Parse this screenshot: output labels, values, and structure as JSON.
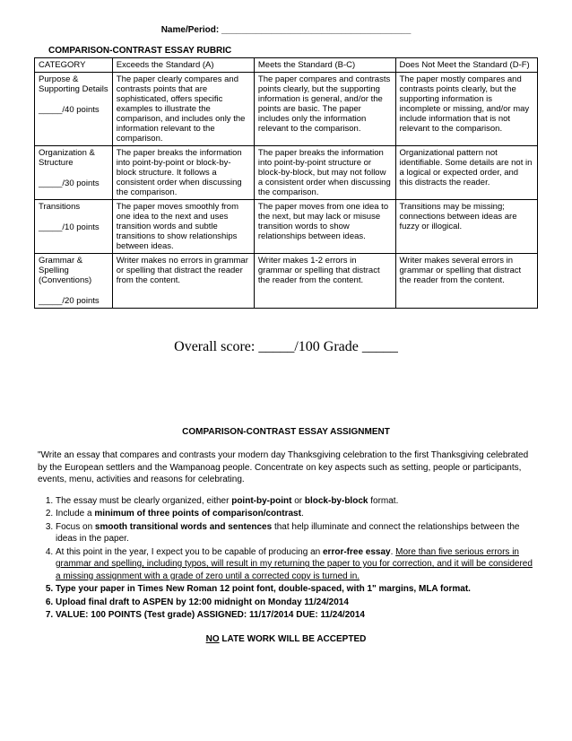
{
  "header": {
    "name_period": "Name/Period: ______________________________________"
  },
  "rubric": {
    "title": "COMPARISON-CONTRAST ESSAY RUBRIC",
    "columns": [
      "CATEGORY",
      "Exceeds the Standard (A)",
      "Meets the Standard (B-C)",
      "Does Not Meet the Standard (D-F)"
    ],
    "rows": [
      {
        "cat_line1": "Purpose & Supporting Details",
        "cat_points": "_____/40 points",
        "exceeds": "The paper clearly compares and contrasts points that are sophisticated, offers specific examples to illustrate the comparison, and includes only the information relevant to the comparison.",
        "meets": "The paper compares and contrasts points clearly, but the supporting information is general, and/or the points are basic. The paper includes only the information relevant to the comparison.",
        "not_meet": "The paper mostly compares and contrasts points clearly, but the supporting information is incomplete or missing, and/or may include information that is not relevant to the comparison."
      },
      {
        "cat_line1": "Organization & Structure",
        "cat_points": "_____/30 points",
        "exceeds": "The paper breaks the information into point-by-point or block-by-block structure. It follows a consistent order when discussing the comparison.",
        "meets": "The paper breaks the information into point-by-point structure or block-by-block, but may not follow a consistent order when discussing the comparison.",
        "not_meet": "Organizational pattern not identifiable. Some details are not in a logical or expected order, and this distracts the reader."
      },
      {
        "cat_line1": "Transitions",
        "cat_points": "_____/10 points",
        "exceeds": "The paper moves smoothly from one idea to the next and uses transition words and subtle transitions to show relationships between ideas.",
        "meets": "The paper moves from one idea to the next, but may lack or misuse transition words to show relationships between ideas.",
        "not_meet": "Transitions may be missing; connections between ideas are fuzzy or illogical."
      },
      {
        "cat_line1": "Grammar & Spelling (Conventions)",
        "cat_points": "_____/20 points",
        "exceeds": "Writer makes no errors in grammar or spelling that distract the reader from the content.",
        "meets": "Writer makes 1-2 errors in grammar or spelling that distract the reader from the content.",
        "not_meet": "Writer makes several errors in grammar or spelling that distract the reader from the content."
      }
    ]
  },
  "overall": {
    "text": "Overall score: _____/100    Grade _____"
  },
  "assignment": {
    "title": "COMPARISON-CONTRAST ESSAY ASSIGNMENT",
    "prompt": "\"Write an essay that compares and contrasts your modern day Thanksgiving celebration to the first Thanksgiving celebrated by the European settlers and the Wampanoag people. Concentrate on key aspects such as setting, people or participants, events, menu, activities and reasons for celebrating.",
    "req1_a": "The essay must be clearly organized, either ",
    "req1_b": "point-by-point",
    "req1_c": " or ",
    "req1_d": "block-by-block",
    "req1_e": " format.",
    "req2_a": "Include a ",
    "req2_b": "minimum of three points of comparison/contrast",
    "req2_c": ".",
    "req3_a": "Focus on ",
    "req3_b": "smooth transitional words and sentences",
    "req3_c": " that help illuminate and connect the relationships between the ideas in the paper.",
    "req4_a": "At this point in the year, I expect you to be capable of producing an ",
    "req4_b": "error-free essay",
    "req4_c": ". ",
    "req4_d": "More than five serious errors in grammar and spelling, including typos, will result in my returning the paper to you for correction, and it will be considered a missing assignment with a grade of zero until a corrected copy is turned in.",
    "req5": "Type your paper in Times New Roman 12 point font, double-spaced, with 1\" margins, MLA format.",
    "req6": "Upload final draft to ASPEN by 12:00 midnight on Monday 11/24/2014",
    "req7": "VALUE: 100 POINTS (Test grade)  ASSIGNED: 11/17/2014           DUE: 11/24/2014",
    "no_late_a": "NO",
    "no_late_b": " LATE WORK WILL BE ACCEPTED"
  }
}
